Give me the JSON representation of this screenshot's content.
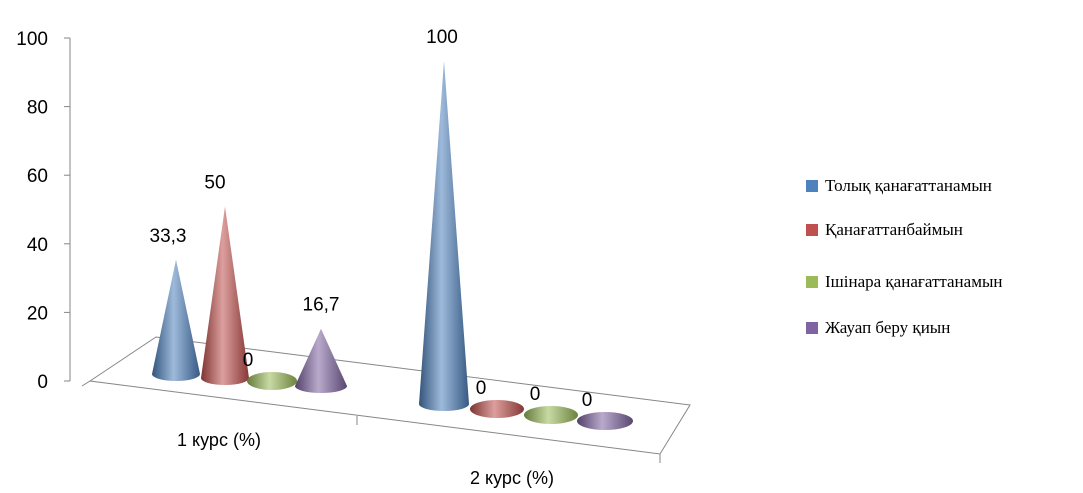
{
  "chart_data": {
    "type": "bar",
    "style": "3d-cone",
    "categories": [
      "1 курс (%)",
      "2 курс (%)"
    ],
    "series": [
      {
        "name": "Толық қанағаттанамын",
        "values": [
          33.3,
          100
        ],
        "labels": [
          "33,3",
          "100"
        ],
        "color": "#4f81bd"
      },
      {
        "name": "Қанағаттанбаймын",
        "values": [
          50,
          0
        ],
        "labels": [
          "50",
          "0"
        ],
        "color": "#c0504d"
      },
      {
        "name": "Ішінара қанағаттанамын",
        "values": [
          0,
          0
        ],
        "labels": [
          "0",
          "0"
        ],
        "color": "#9bbb59"
      },
      {
        "name": "Жауап беру қиын",
        "values": [
          16.7,
          0
        ],
        "labels": [
          "16,7",
          "0"
        ],
        "color": "#8064a2"
      }
    ],
    "y_ticks": [
      "0",
      "20",
      "40",
      "60",
      "80",
      "100"
    ],
    "ylim": [
      0,
      100
    ],
    "legend_position": "right",
    "grid": false
  }
}
